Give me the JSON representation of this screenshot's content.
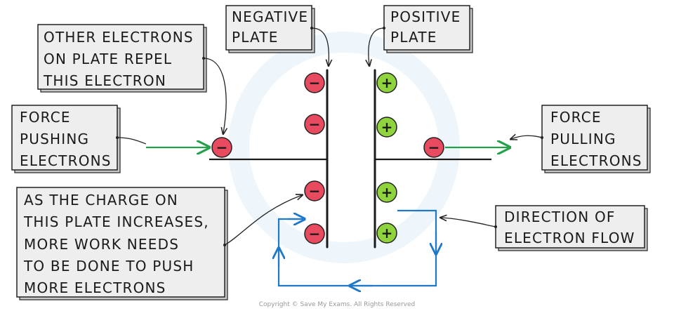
{
  "labels": {
    "negative_plate": [
      "NEGATIVE",
      "PLATE"
    ],
    "positive_plate": [
      "POSITIVE",
      "PLATE"
    ],
    "other_electrons": [
      "OTHER ELECTRONS",
      "ON PLATE REPEL",
      "THIS ELECTRON"
    ],
    "force_pushing": [
      "FORCE",
      "PUSHING",
      "ELECTRONS"
    ],
    "force_pulling": [
      "FORCE",
      "PULLING",
      "ELECTRONS"
    ],
    "charge_increases": [
      "AS THE CHARGE ON",
      "THIS PLATE INCREASES,",
      "MORE WORK NEEDS",
      "TO BE DONE TO PUSH",
      "MORE ELECTRONS"
    ],
    "electron_flow": [
      "DIRECTION OF",
      "ELECTRON FLOW"
    ]
  },
  "symbols": {
    "negative": "−",
    "positive": "+"
  },
  "copyright": "Copyright © Save My Exams. All Rights Reserved",
  "colors": {
    "negative_charge": "#e84a5f",
    "positive_charge": "#8fd43c",
    "electron_flow": "#1f78c8",
    "force_arrow": "#22a04a",
    "label_box": "#eeeeee"
  }
}
